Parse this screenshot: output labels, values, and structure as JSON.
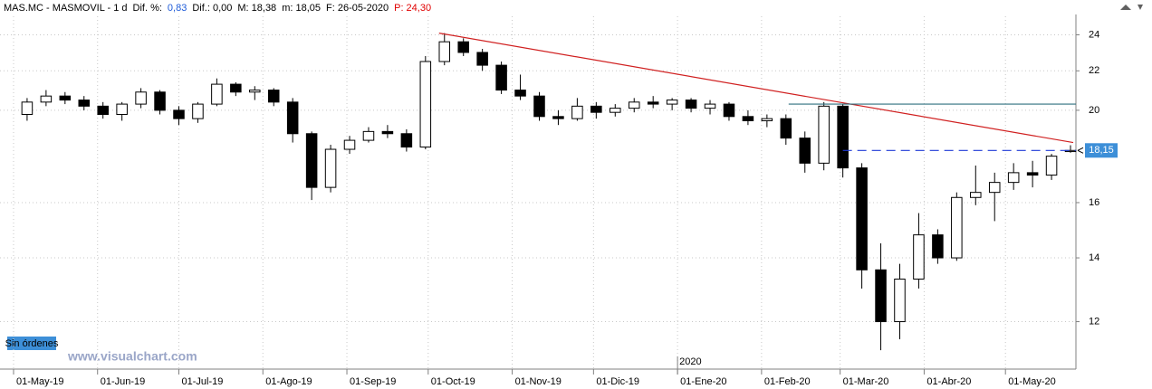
{
  "header": [
    {
      "text": "MAS.MC - MASMOVIL - 1 d",
      "color": "#000000"
    },
    {
      "text": "Dif. %:",
      "color": "#000000"
    },
    {
      "text": "0,83",
      "color": "#1e5bd8"
    },
    {
      "text": "Dif.: 0,00",
      "color": "#000000"
    },
    {
      "text": "M: 18,38",
      "color": "#000000"
    },
    {
      "text": "m: 18,05",
      "color": "#000000"
    },
    {
      "text": "F: 26-05-2020",
      "color": "#000000"
    },
    {
      "text": "P: 24,30",
      "color": "#e00000"
    }
  ],
  "orders_button": "Sin órdenes",
  "watermark": "www.visualchart.com",
  "chart_data": {
    "type": "candlestick",
    "log_scale": true,
    "grid": true,
    "up_color": "#ffffff",
    "down_color": "#000000",
    "x": [
      5,
      12,
      19,
      26,
      33,
      40,
      47,
      54,
      61,
      68,
      75,
      82,
      89,
      96,
      103,
      110,
      117,
      124,
      131,
      138,
      145,
      152,
      159,
      166,
      173,
      180,
      187,
      194,
      201,
      208,
      215,
      222,
      229,
      236,
      243,
      250,
      257,
      264,
      271,
      278,
      285,
      292,
      299,
      306,
      313,
      320,
      327,
      334,
      341,
      348,
      355,
      362,
      369,
      376,
      383,
      390
    ],
    "open": [
      19.8,
      20.4,
      20.7,
      20.5,
      20.2,
      19.8,
      20.3,
      20.9,
      20.0,
      19.6,
      20.3,
      21.3,
      20.9,
      21.0,
      20.4,
      18.9,
      16.6,
      18.2,
      18.6,
      19.0,
      18.9,
      18.3,
      22.5,
      23.6,
      23.0,
      22.3,
      21.0,
      20.7,
      19.7,
      19.6,
      20.2,
      19.9,
      20.1,
      20.4,
      20.3,
      20.5,
      20.1,
      20.3,
      19.7,
      19.5,
      19.6,
      18.7,
      17.6,
      20.2,
      17.4,
      13.6,
      12.0,
      13.3,
      14.8,
      14.0,
      16.2,
      16.4,
      16.8,
      17.2,
      17.1,
      18.1
    ],
    "high": [
      20.6,
      21.0,
      20.9,
      20.7,
      20.4,
      20.4,
      21.1,
      21.0,
      20.2,
      20.4,
      21.6,
      21.4,
      21.2,
      21.1,
      20.6,
      19.0,
      18.4,
      18.8,
      19.2,
      19.3,
      19.1,
      22.8,
      24.1,
      23.8,
      23.2,
      22.5,
      21.8,
      20.9,
      20.0,
      20.6,
      20.4,
      20.3,
      20.6,
      20.7,
      20.6,
      20.6,
      20.5,
      20.4,
      20.0,
      19.8,
      19.8,
      19.0,
      20.4,
      20.3,
      17.6,
      14.5,
      13.8,
      15.6,
      15.0,
      16.4,
      17.5,
      17.2,
      17.6,
      17.7,
      18.0,
      18.38
    ],
    "low": [
      19.5,
      20.2,
      20.3,
      20.0,
      19.6,
      19.5,
      20.1,
      19.8,
      19.3,
      19.4,
      20.2,
      20.7,
      20.5,
      20.2,
      18.5,
      16.1,
      16.4,
      18.0,
      18.5,
      18.7,
      18.1,
      18.2,
      22.3,
      22.8,
      22.0,
      20.8,
      20.5,
      19.5,
      19.3,
      19.5,
      19.6,
      19.7,
      19.9,
      20.1,
      20.0,
      19.9,
      19.8,
      19.5,
      19.3,
      19.2,
      18.4,
      17.2,
      17.3,
      17.0,
      13.0,
      11.2,
      11.5,
      13.0,
      13.8,
      13.9,
      15.9,
      15.3,
      16.5,
      16.6,
      16.9,
      18.05
    ],
    "close": [
      20.4,
      20.7,
      20.5,
      20.2,
      19.8,
      20.3,
      20.9,
      20.0,
      19.6,
      20.3,
      21.3,
      20.9,
      21.0,
      20.4,
      18.9,
      16.6,
      18.2,
      18.6,
      19.0,
      18.9,
      18.3,
      22.5,
      23.6,
      23.0,
      22.3,
      21.0,
      20.7,
      19.7,
      19.6,
      20.2,
      19.9,
      20.1,
      20.4,
      20.3,
      20.5,
      20.1,
      20.3,
      19.7,
      19.5,
      19.6,
      18.7,
      17.6,
      20.2,
      17.4,
      13.6,
      12.0,
      13.3,
      14.8,
      14.0,
      16.2,
      16.4,
      16.8,
      17.2,
      17.1,
      17.9,
      18.15
    ],
    "xlim": [
      -5,
      392
    ],
    "xticks": [
      {
        "value": 0,
        "label": "01-May-19"
      },
      {
        "value": 31,
        "label": "01-Jun-19"
      },
      {
        "value": 61,
        "label": "01-Jul-19"
      },
      {
        "value": 92,
        "label": "01-Ago-19"
      },
      {
        "value": 123,
        "label": "01-Sep-19"
      },
      {
        "value": 153,
        "label": "01-Oct-19"
      },
      {
        "value": 184,
        "label": "01-Nov-19"
      },
      {
        "value": 214,
        "label": "01-Dic-19"
      },
      {
        "value": 245,
        "label": "01-Ene-20"
      },
      {
        "value": 276,
        "label": "01-Feb-20"
      },
      {
        "value": 305,
        "label": "01-Mar-20"
      },
      {
        "value": 336,
        "label": "01-Abr-20"
      },
      {
        "value": 366,
        "label": "01-May-20"
      }
    ],
    "year_marker": {
      "value": 245,
      "label": "2020"
    },
    "ylim": [
      10.7,
      25.1
    ],
    "yticks": [
      12,
      14,
      16,
      20,
      22,
      24
    ],
    "last_price": {
      "value": 18.15,
      "label": "18,15",
      "color": "#3d8fd8"
    },
    "lines": [
      {
        "x": [
          157,
          391
        ],
        "y": [
          24.1,
          18.5
        ],
        "color": "#d02020",
        "dashed": false
      },
      {
        "x": [
          286,
          392
        ],
        "y": [
          20.3,
          20.3
        ],
        "color": "#2f6f7f",
        "dashed": false
      },
      {
        "x": [
          306,
          392
        ],
        "y": [
          18.15,
          18.15
        ],
        "color": "#1e3ad8",
        "dashed": true
      }
    ]
  }
}
